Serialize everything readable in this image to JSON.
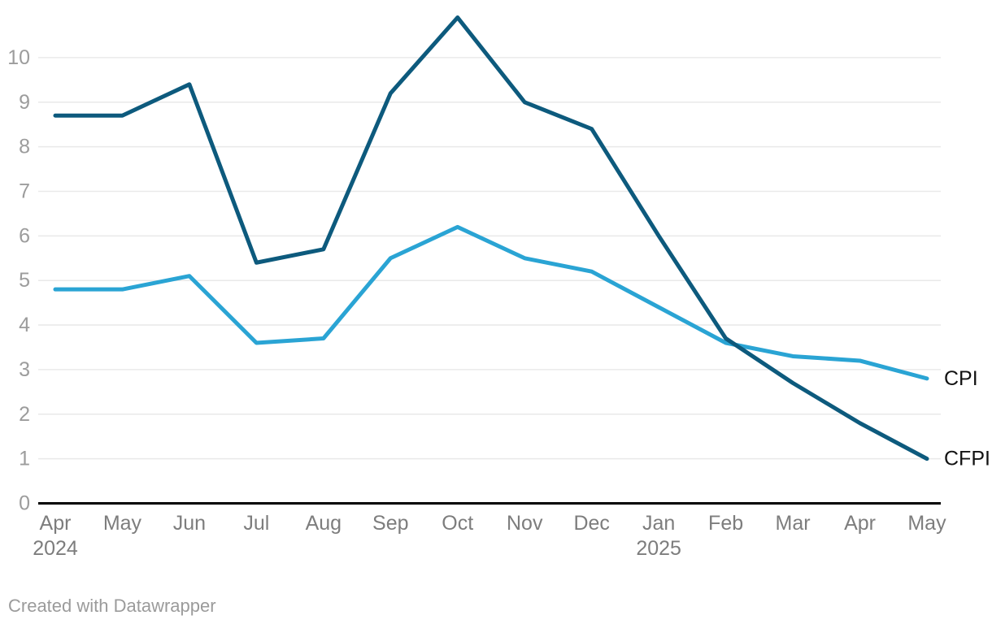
{
  "chart_data": {
    "type": "line",
    "categories": [
      {
        "label": "Apr",
        "year": "2024"
      },
      {
        "label": "May"
      },
      {
        "label": "Jun"
      },
      {
        "label": "Jul"
      },
      {
        "label": "Aug"
      },
      {
        "label": "Sep"
      },
      {
        "label": "Oct"
      },
      {
        "label": "Nov"
      },
      {
        "label": "Dec"
      },
      {
        "label": "Jan",
        "year": "2025"
      },
      {
        "label": "Feb"
      },
      {
        "label": "Mar"
      },
      {
        "label": "Apr"
      },
      {
        "label": "May"
      }
    ],
    "series": [
      {
        "name": "CPI",
        "color": "#2aa4d4",
        "values": [
          4.8,
          4.8,
          5.1,
          3.6,
          3.7,
          5.5,
          6.2,
          5.5,
          5.2,
          4.4,
          3.6,
          3.3,
          3.2,
          2.8
        ]
      },
      {
        "name": "CFPI",
        "color": "#0d5a7d",
        "values": [
          8.7,
          8.7,
          9.4,
          5.4,
          5.7,
          9.2,
          10.9,
          9.0,
          8.4,
          6.0,
          3.7,
          2.7,
          1.8,
          1.0
        ]
      }
    ],
    "y_ticks": [
      0,
      1,
      2,
      3,
      4,
      5,
      6,
      7,
      8,
      9,
      10
    ],
    "ylim": [
      0,
      10.9
    ],
    "grid": "horizontal",
    "legend_position": "inline-right",
    "title": "",
    "xlabel": "",
    "ylabel": ""
  },
  "colors": {
    "background": "#ffffff",
    "gridline": "#e9e9e9",
    "axis_line": "#000000",
    "y_tick_label": "#9c9c9c",
    "x_tick_label": "#7d7d7d",
    "series_label": "#121212"
  },
  "footer": {
    "text": "Created with Datawrapper"
  }
}
